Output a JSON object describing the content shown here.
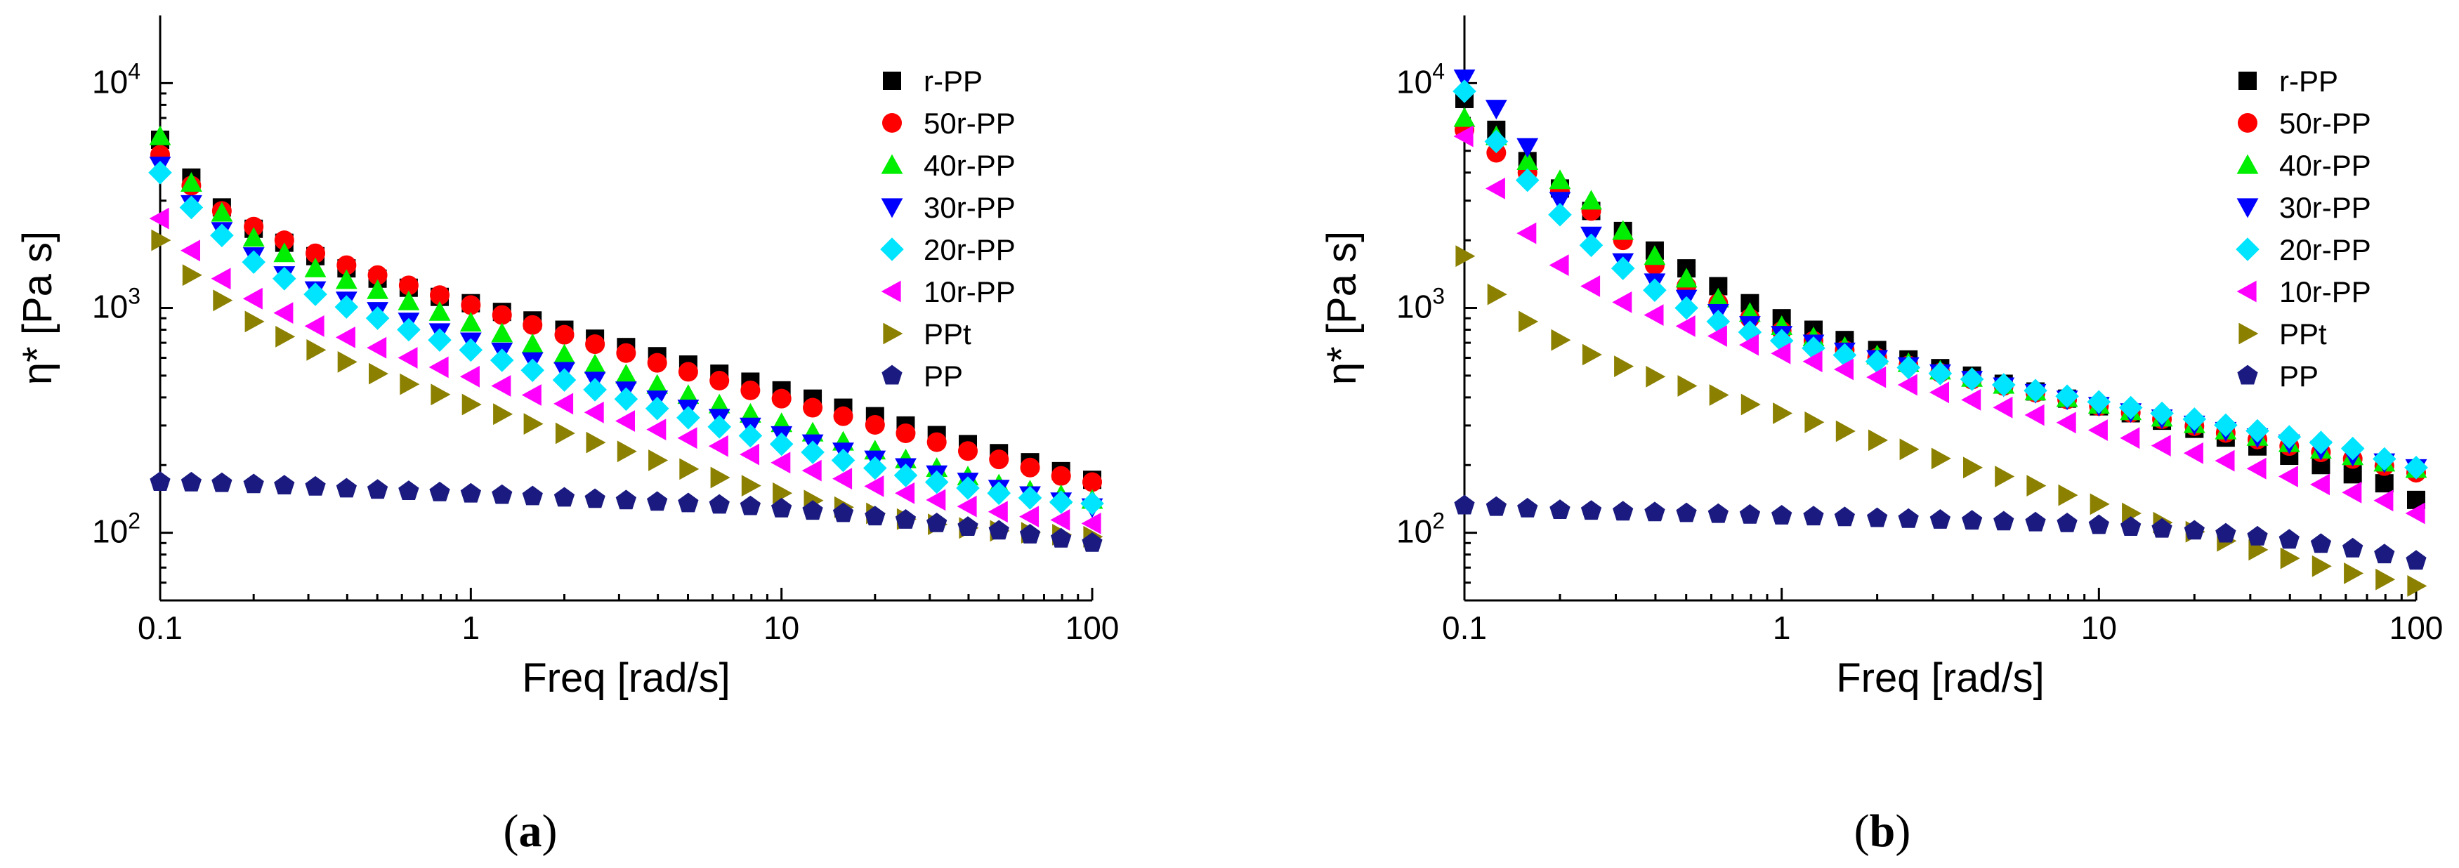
{
  "figure": {
    "panels": [
      {
        "id": "a",
        "label_open": "(",
        "label_letter": "a",
        "label_close": ")"
      },
      {
        "id": "b",
        "label_open": "(",
        "label_letter": "b",
        "label_close": ")"
      }
    ]
  },
  "chart_data": [
    {
      "type": "scatter",
      "panel": "a",
      "title": "",
      "xlabel": "Freq [rad/s]",
      "ylabel": "η* [Pa s]",
      "xscale": "log",
      "yscale": "log",
      "xlim": [
        0.1,
        100
      ],
      "ylim": [
        50,
        20000
      ],
      "xticks": [
        {
          "value": 0.1,
          "label": "0.1"
        },
        {
          "value": 1,
          "label": "1"
        },
        {
          "value": 10,
          "label": "10"
        },
        {
          "value": 100,
          "label": "100"
        }
      ],
      "yticks": [
        {
          "value": 100,
          "base": "10",
          "exp": "2"
        },
        {
          "value": 1000,
          "base": "10",
          "exp": "3"
        },
        {
          "value": 10000,
          "base": "10",
          "exp": "4"
        }
      ],
      "legend_position": "top-right",
      "x": [
        0.1,
        0.126,
        0.158,
        0.2,
        0.251,
        0.316,
        0.398,
        0.501,
        0.631,
        0.794,
        1.0,
        1.26,
        1.58,
        2.0,
        2.51,
        3.16,
        3.98,
        5.01,
        6.31,
        7.94,
        10.0,
        12.6,
        15.8,
        20.0,
        25.1,
        31.6,
        39.8,
        50.1,
        63.1,
        79.4,
        100.0
      ],
      "series": [
        {
          "name": "r-PP",
          "color": "#000000",
          "marker": "square",
          "values": [
            5600,
            3800,
            2800,
            2250,
            1950,
            1700,
            1500,
            1350,
            1230,
            1120,
            1050,
            960,
            880,
            800,
            730,
            670,
            610,
            560,
            510,
            470,
            430,
            395,
            360,
            330,
            300,
            272,
            248,
            226,
            206,
            188,
            172
          ]
        },
        {
          "name": "50r-PP",
          "color": "#ff0000",
          "marker": "circle",
          "values": [
            4800,
            3500,
            2700,
            2300,
            2000,
            1750,
            1550,
            1400,
            1260,
            1140,
            1030,
            930,
            840,
            760,
            690,
            630,
            570,
            520,
            475,
            430,
            395,
            360,
            330,
            302,
            277,
            253,
            231,
            212,
            195,
            179,
            168
          ]
        },
        {
          "name": "40r-PP",
          "color": "#00ee00",
          "marker": "triangle-up",
          "values": [
            5800,
            3600,
            2650,
            2050,
            1750,
            1500,
            1330,
            1200,
            1070,
            960,
            860,
            770,
            690,
            620,
            560,
            505,
            455,
            410,
            372,
            338,
            307,
            279,
            254,
            232,
            212,
            194,
            178,
            164,
            154,
            147,
            140
          ]
        },
        {
          "name": "30r-PP",
          "color": "#0000ff",
          "marker": "triangle-down",
          "values": [
            4300,
            2900,
            2200,
            1700,
            1400,
            1200,
            1080,
            970,
            870,
            780,
            710,
            640,
            580,
            525,
            475,
            430,
            392,
            357,
            325,
            297,
            272,
            250,
            230,
            212,
            196,
            182,
            169,
            157,
            147,
            138,
            130
          ]
        },
        {
          "name": "20r-PP",
          "color": "#00e5ff",
          "marker": "diamond",
          "values": [
            4000,
            2800,
            2100,
            1600,
            1350,
            1150,
            1010,
            900,
            800,
            720,
            650,
            585,
            528,
            478,
            433,
            393,
            357,
            325,
            296,
            270,
            248,
            228,
            210,
            194,
            180,
            168,
            158,
            150,
            143,
            137,
            135
          ]
        },
        {
          "name": "10r-PP",
          "color": "#ff00ff",
          "marker": "triangle-left",
          "values": [
            2500,
            1800,
            1350,
            1100,
            950,
            830,
            740,
            665,
            600,
            545,
            495,
            450,
            410,
            375,
            343,
            314,
            288,
            264,
            243,
            223,
            205,
            189,
            174,
            161,
            150,
            140,
            131,
            124,
            118,
            114,
            110
          ]
        },
        {
          "name": "PPt",
          "color": "#8b8000",
          "marker": "triangle-right",
          "values": [
            2000,
            1400,
            1080,
            870,
            745,
            650,
            575,
            510,
            458,
            412,
            372,
            337,
            305,
            277,
            252,
            230,
            210,
            192,
            176,
            162,
            150,
            139,
            130,
            122,
            115,
            109,
            105,
            102,
            100,
            98,
            96
          ]
        },
        {
          "name": "PP",
          "color": "#1a1a80",
          "marker": "pentagon",
          "values": [
            168,
            167,
            166,
            164,
            162,
            160,
            157,
            155,
            153,
            151,
            149,
            147,
            145,
            143,
            141,
            139,
            137,
            135,
            133,
            131,
            128,
            125,
            122,
            118,
            114,
            110,
            106,
            102,
            98,
            94,
            90
          ]
        }
      ]
    },
    {
      "type": "scatter",
      "panel": "b",
      "title": "",
      "xlabel": "Freq [rad/s]",
      "ylabel": "η* [Pa s]",
      "xscale": "log",
      "yscale": "log",
      "xlim": [
        0.1,
        100
      ],
      "ylim": [
        50,
        20000
      ],
      "xticks": [
        {
          "value": 0.1,
          "label": "0.1"
        },
        {
          "value": 1,
          "label": "1"
        },
        {
          "value": 10,
          "label": "10"
        },
        {
          "value": 100,
          "label": "100"
        }
      ],
      "yticks": [
        {
          "value": 100,
          "base": "10",
          "exp": "2"
        },
        {
          "value": 1000,
          "base": "10",
          "exp": "3"
        },
        {
          "value": 10000,
          "base": "10",
          "exp": "4"
        }
      ],
      "legend_position": "top-right",
      "x": [
        0.1,
        0.126,
        0.158,
        0.2,
        0.251,
        0.316,
        0.398,
        0.501,
        0.631,
        0.794,
        1.0,
        1.26,
        1.58,
        2.0,
        2.51,
        3.16,
        3.98,
        5.01,
        6.31,
        7.94,
        10.0,
        12.6,
        15.8,
        20.0,
        25.1,
        31.6,
        39.8,
        50.1,
        63.1,
        79.4,
        100.0
      ],
      "series": [
        {
          "name": "r-PP",
          "color": "#000000",
          "marker": "square",
          "values": [
            8500,
            6200,
            4500,
            3400,
            2700,
            2200,
            1800,
            1500,
            1250,
            1050,
            900,
            800,
            720,
            650,
            590,
            540,
            500,
            460,
            425,
            395,
            365,
            340,
            315,
            290,
            265,
            242,
            220,
            200,
            182,
            166,
            140
          ]
        },
        {
          "name": "50r-PP",
          "color": "#ff0000",
          "marker": "circle",
          "values": [
            6200,
            4900,
            4000,
            3300,
            2700,
            2000,
            1550,
            1250,
            1050,
            900,
            790,
            715,
            650,
            600,
            555,
            515,
            480,
            450,
            420,
            392,
            366,
            342,
            320,
            298,
            278,
            260,
            243,
            228,
            213,
            198,
            185
          ]
        },
        {
          "name": "40r-PP",
          "color": "#00ee00",
          "marker": "triangle-up",
          "values": [
            7000,
            5800,
            4500,
            3700,
            3000,
            2200,
            1700,
            1350,
            1100,
            950,
            830,
            740,
            670,
            615,
            568,
            526,
            488,
            455,
            425,
            397,
            371,
            347,
            325,
            304,
            285,
            267,
            250,
            234,
            219,
            205,
            192
          ]
        },
        {
          "name": "30r-PP",
          "color": "#0000ff",
          "marker": "triangle-down",
          "values": [
            10500,
            7700,
            5200,
            3000,
            2100,
            1600,
            1300,
            1100,
            950,
            840,
            760,
            695,
            640,
            593,
            551,
            513,
            479,
            448,
            419,
            392,
            367,
            344,
            323,
            303,
            284,
            266,
            250,
            234,
            220,
            206,
            194
          ]
        },
        {
          "name": "20r-PP",
          "color": "#00e5ff",
          "marker": "diamond",
          "values": [
            9200,
            5500,
            3700,
            2600,
            1900,
            1500,
            1200,
            1000,
            870,
            780,
            715,
            662,
            617,
            578,
            543,
            511,
            482,
            455,
            429,
            405,
            382,
            360,
            340,
            320,
            301,
            284,
            267,
            252,
            237,
            213,
            195
          ]
        },
        {
          "name": "10r-PP",
          "color": "#ff00ff",
          "marker": "triangle-left",
          "values": [
            5800,
            3400,
            2150,
            1550,
            1250,
            1060,
            930,
            830,
            750,
            685,
            628,
            578,
            533,
            492,
            455,
            421,
            390,
            361,
            334,
            309,
            286,
            264,
            244,
            226,
            209,
            193,
            178,
            164,
            151,
            139,
            122
          ]
        },
        {
          "name": "PPt",
          "color": "#8b8000",
          "marker": "triangle-right",
          "values": [
            1700,
            1150,
            870,
            720,
            620,
            550,
            495,
            450,
            410,
            372,
            340,
            310,
            283,
            258,
            235,
            214,
            195,
            178,
            162,
            147,
            134,
            122,
            111,
            101,
            92,
            84,
            77,
            71,
            66,
            62,
            58
          ]
        },
        {
          "name": "PP",
          "color": "#1a1a80",
          "marker": "pentagon",
          "values": [
            132,
            130,
            128,
            126,
            125,
            124,
            123,
            122,
            121,
            120,
            119,
            118,
            117,
            116,
            115,
            114,
            113,
            112,
            111,
            110,
            108,
            106,
            104,
            102,
            99,
            96,
            93,
            89,
            85,
            80,
            75
          ]
        }
      ]
    }
  ]
}
